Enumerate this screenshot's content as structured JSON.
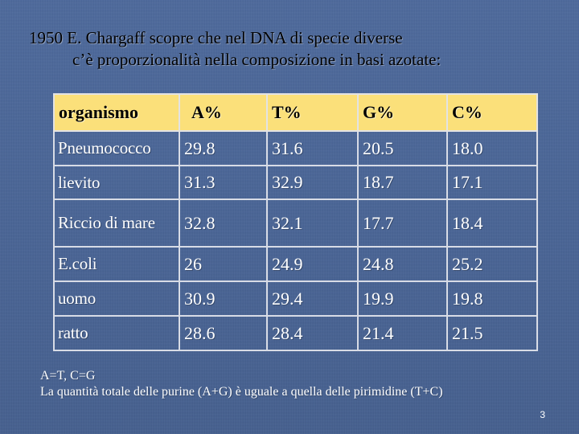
{
  "title": {
    "line1": "1950  E. Chargaff  scopre che nel DNA di specie diverse",
    "line2": "c’è proporzionalità nella composizione in basi azotate:"
  },
  "table": {
    "headers": [
      "organismo",
      "A%",
      "T%",
      "G%",
      "C%"
    ],
    "rows": [
      {
        "organismo": "Pneumococco",
        "A": "29.8",
        "T": "31.6",
        "G": "20.5",
        "C": "18.0"
      },
      {
        "organismo": "lievito",
        "A": "31.3",
        "T": "32.9",
        "G": "18.7",
        "C": "17.1"
      },
      {
        "organismo": "Riccio di mare",
        "A": "32.8",
        "T": "32.1",
        "G": "17.7",
        "C": "18.4"
      },
      {
        "organismo": "E.coli",
        "A": "26",
        "T": "24.9",
        "G": "24.8",
        "C": "25.2"
      },
      {
        "organismo": "uomo",
        "A": "30.9",
        "T": "29.4",
        "G": "19.9",
        "C": "19.8"
      },
      {
        "organismo": "ratto",
        "A": "28.6",
        "T": "28.4",
        "G": "21.4",
        "C": "21.5"
      }
    ]
  },
  "footer": {
    "line1": "A=T, C=G",
    "line2": "La quantità totale delle purine (A+G) è uguale a quella delle pirimidine (T+C)"
  },
  "page_number": "3",
  "colors": {
    "background": "#4a6596",
    "header_fill": "#fbe07a",
    "grid_lines": "#d8dce6",
    "cell_text": "#ffffff"
  }
}
